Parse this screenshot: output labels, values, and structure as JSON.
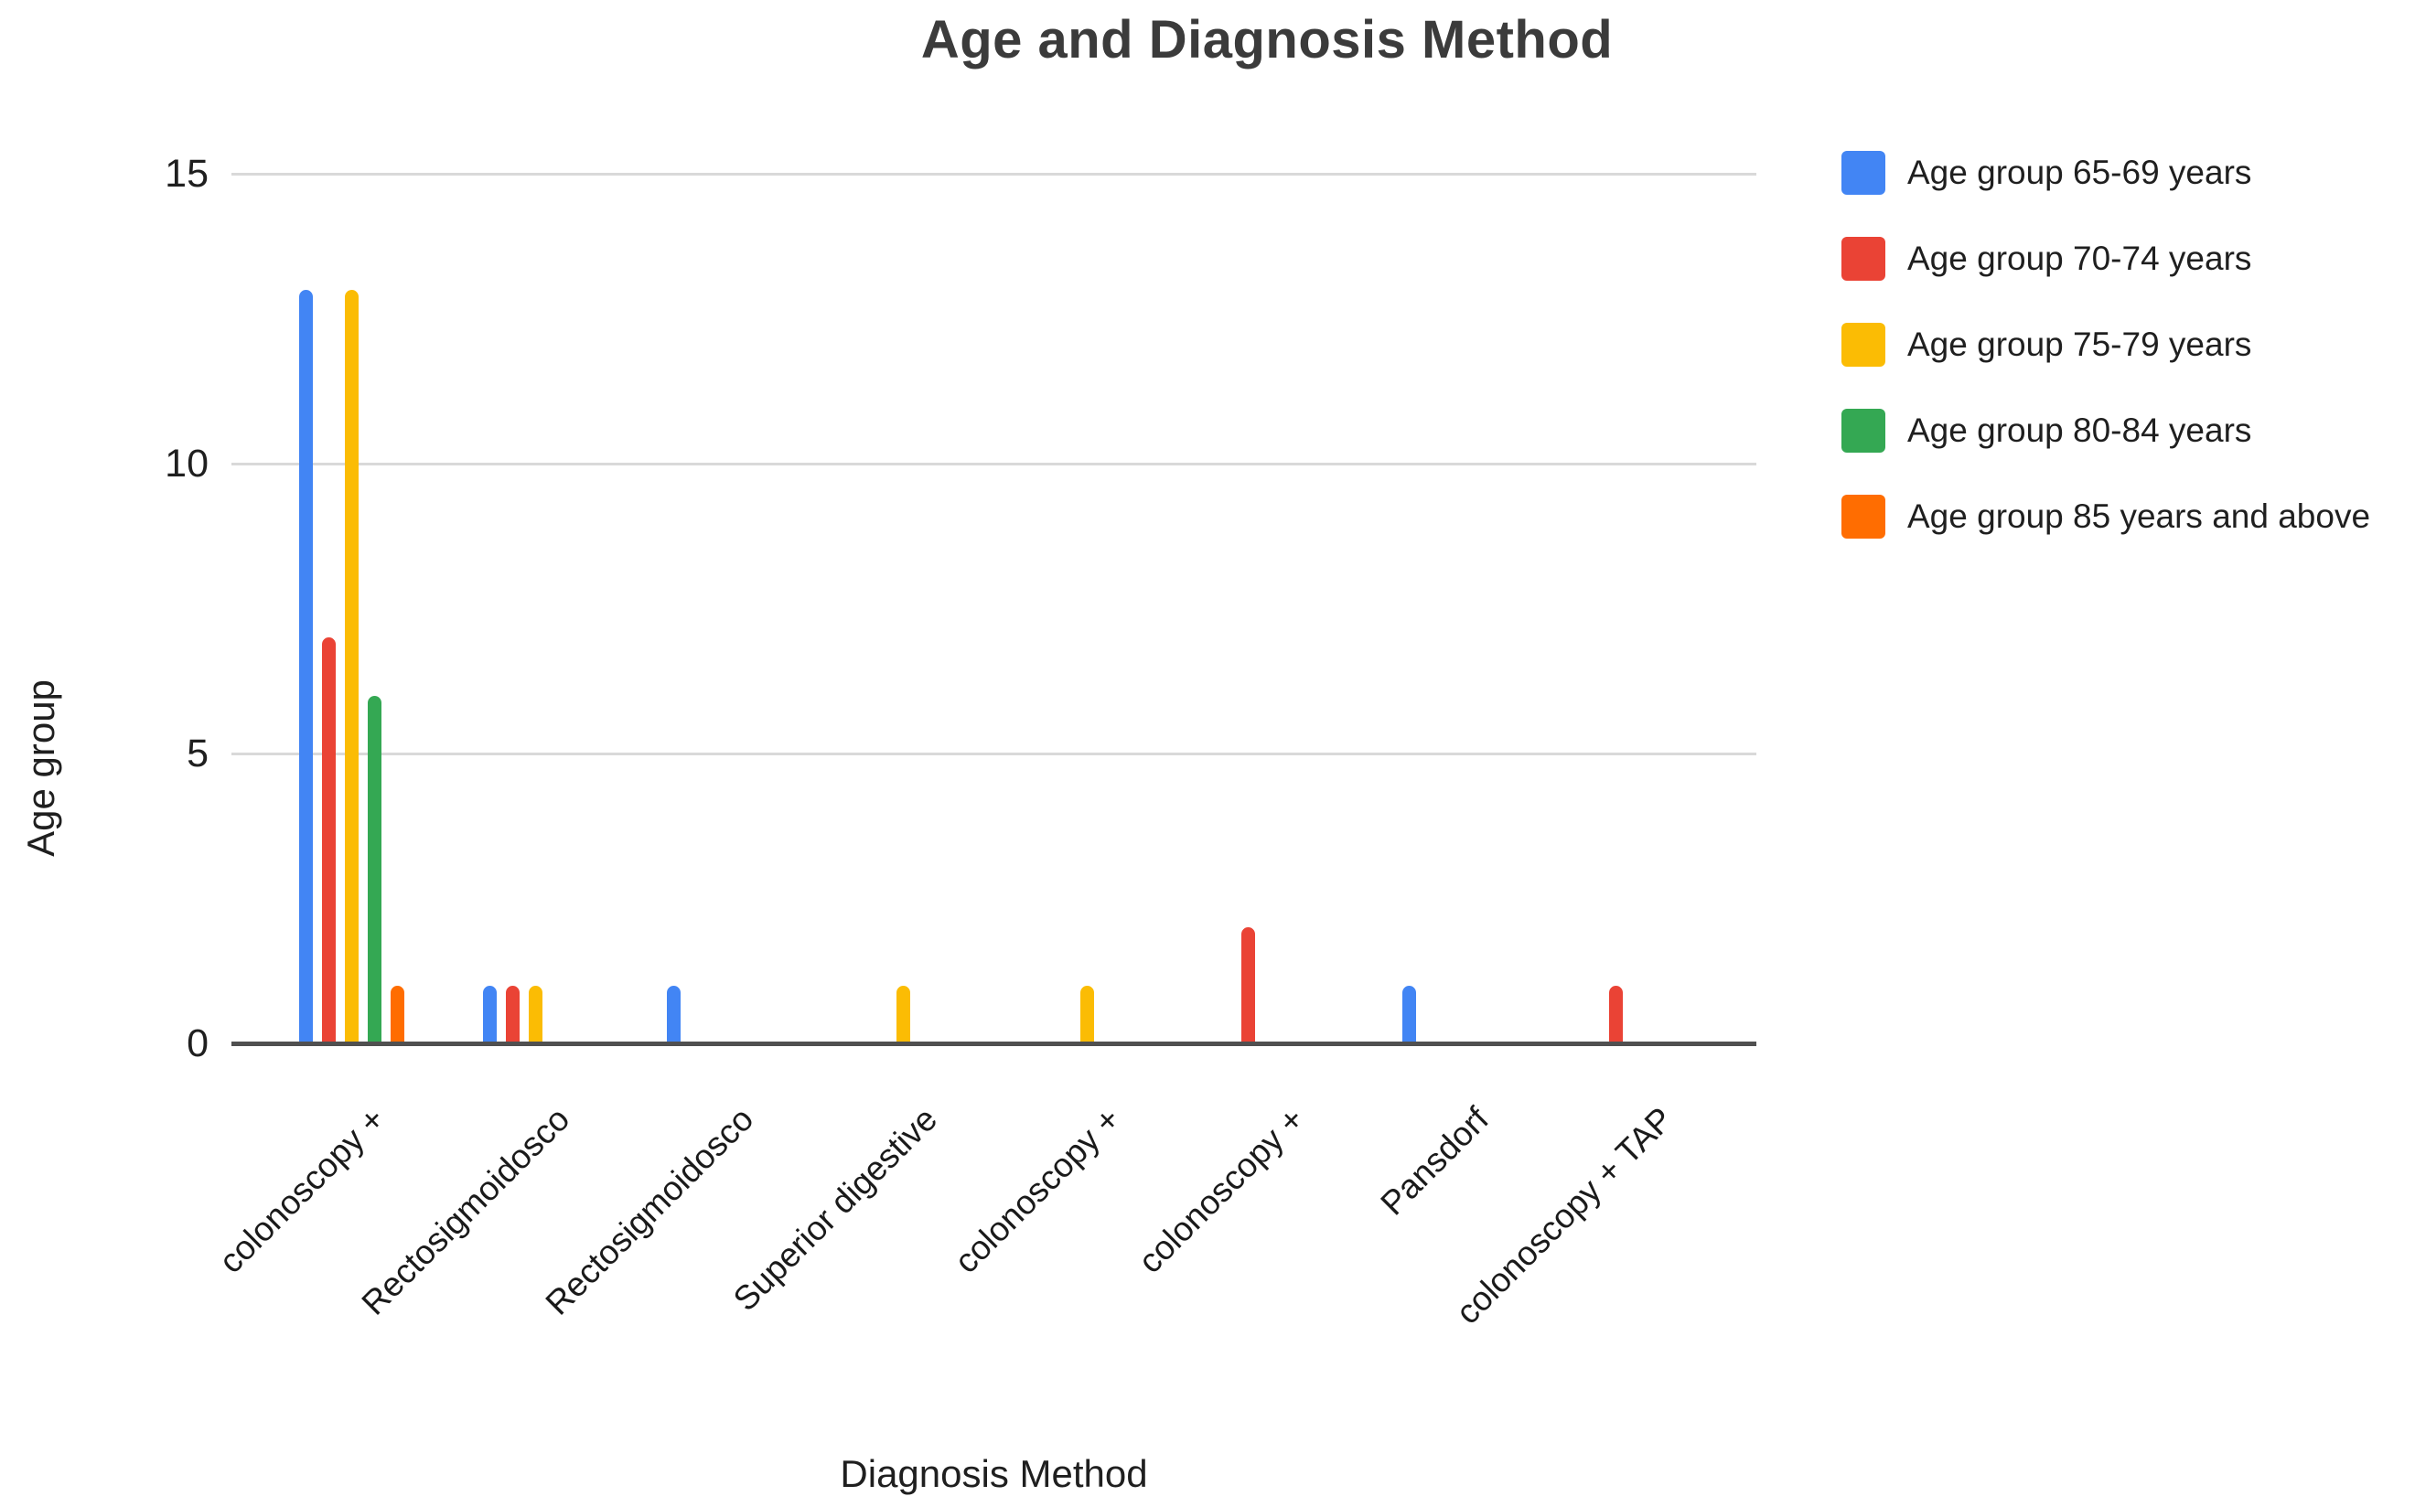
{
  "chart_data": {
    "type": "bar",
    "title": "Age and Diagnosis Method",
    "xlabel": "Diagnosis Method",
    "ylabel": "Age group",
    "ylim": [
      0,
      15
    ],
    "yticks": [
      0,
      5,
      10,
      15
    ],
    "grid": true,
    "legend_position": "right",
    "categories": [
      "colonoscopy +",
      "Rectosigmoidosco",
      "Rectosigmoidosco",
      "Superior digestive",
      "colonoscopy +",
      "colonoscopy +",
      "Pansdorf",
      "colonoscopy + TAP"
    ],
    "series": [
      {
        "name": "Age group 65-69 years",
        "color": "#4285F4",
        "values": [
          13,
          1,
          1,
          0,
          0,
          0,
          1,
          0
        ]
      },
      {
        "name": "Age group 70-74 years",
        "color": "#EA4335",
        "values": [
          7,
          1,
          0,
          0,
          0,
          2,
          0,
          1
        ]
      },
      {
        "name": "Age group 75-79 years",
        "color": "#FBBC04",
        "values": [
          13,
          1,
          0,
          1,
          1,
          0,
          0,
          0
        ]
      },
      {
        "name": "Age group 80-84 years",
        "color": "#34A853",
        "values": [
          6,
          0,
          0,
          0,
          0,
          0,
          0,
          0
        ]
      },
      {
        "name": "Age group 85 years and above",
        "color": "#FF6D01",
        "values": [
          1,
          0,
          0,
          0,
          0,
          0,
          0,
          0
        ]
      }
    ],
    "colors": {
      "gridline": "#d9d9d9",
      "axis_line": "#505050",
      "text": "#1f1f1f",
      "title": "#3b3b3b"
    }
  }
}
